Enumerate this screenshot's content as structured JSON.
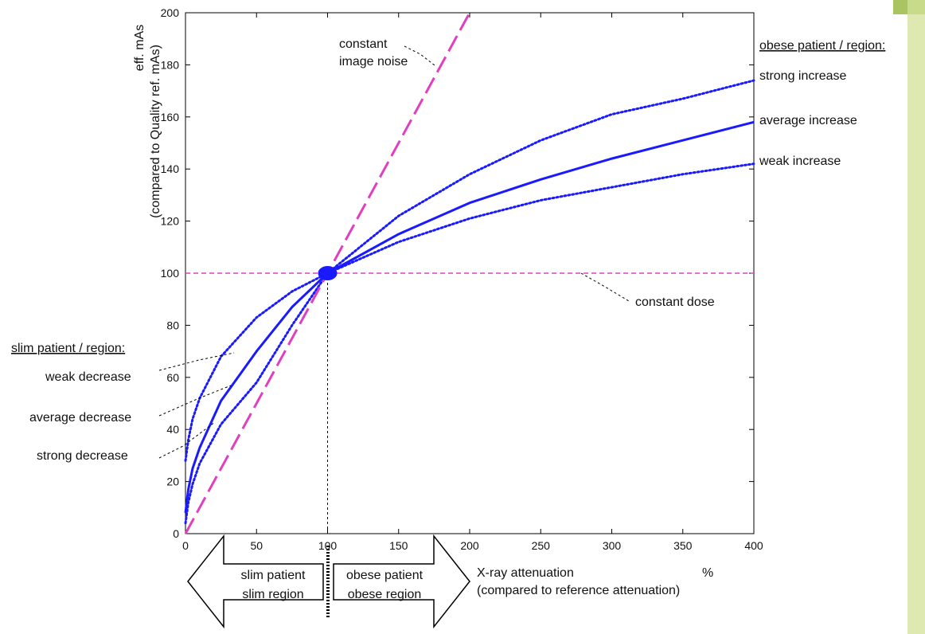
{
  "chart_data": {
    "type": "line",
    "xlim": [
      0,
      400
    ],
    "ylim": [
      0,
      200
    ],
    "x_ticks": [
      0,
      50,
      100,
      150,
      200,
      250,
      300,
      350,
      400
    ],
    "y_ticks": [
      0,
      20,
      40,
      60,
      80,
      100,
      120,
      140,
      160,
      180,
      200
    ],
    "ylabel_line1": "eff. mAs",
    "ylabel_line2": "(compared to Quality ref. mAs)",
    "xlabel_line1": "X-ray attenuation",
    "xlabel_unit": "%",
    "xlabel_line2": "(compared to reference attenuation)",
    "grid": false,
    "series": [
      {
        "name": "constant image noise",
        "color": "#e040c0",
        "style": "long-dash",
        "x": [
          0,
          100,
          200
        ],
        "y": [
          0,
          100,
          200
        ]
      },
      {
        "name": "constant dose",
        "color": "#e040c0",
        "style": "short-dash",
        "x": [
          0,
          400
        ],
        "y": [
          100,
          100
        ]
      },
      {
        "name": "strong increase",
        "color": "#1a1aff",
        "style": "dotted",
        "x": [
          0,
          2,
          5,
          10,
          25,
          50,
          75,
          100,
          150,
          200,
          250,
          300,
          350,
          400
        ],
        "y": [
          4,
          12,
          19,
          27,
          42,
          58,
          80,
          100,
          122,
          138,
          151,
          161,
          167,
          174
        ]
      },
      {
        "name": "average increase",
        "color": "#1a1aff",
        "style": "solid",
        "x": [
          0,
          2,
          5,
          10,
          25,
          50,
          75,
          100,
          150,
          200,
          250,
          300,
          350,
          400
        ],
        "y": [
          8,
          17,
          25,
          33,
          51,
          70,
          87,
          100,
          115,
          127,
          136,
          144,
          151,
          158
        ]
      },
      {
        "name": "weak increase",
        "color": "#1a1aff",
        "style": "dotted",
        "x": [
          0,
          2,
          5,
          10,
          25,
          50,
          75,
          100,
          150,
          200,
          250,
          300,
          350,
          400
        ],
        "y": [
          28,
          36,
          44,
          52,
          68,
          83,
          93,
          100,
          112,
          121,
          128,
          133,
          138,
          142
        ]
      }
    ],
    "reference_point": {
      "x": 100,
      "y": 100
    },
    "annotations": {
      "constant_image_noise_1": "constant",
      "constant_image_noise_2": "image noise",
      "constant_dose": "constant dose",
      "obese_header": "obese patient / region:",
      "strong_increase": "strong increase",
      "average_increase": "average increase",
      "weak_increase": "weak increase",
      "slim_header": "slim patient / region:",
      "weak_decrease": "weak decrease",
      "average_decrease": "average decrease",
      "strong_decrease": "strong decrease"
    },
    "arrows": {
      "left_line1": "slim patient",
      "left_line2": "slim region",
      "right_line1": "obese patient",
      "right_line2": "obese region"
    }
  }
}
